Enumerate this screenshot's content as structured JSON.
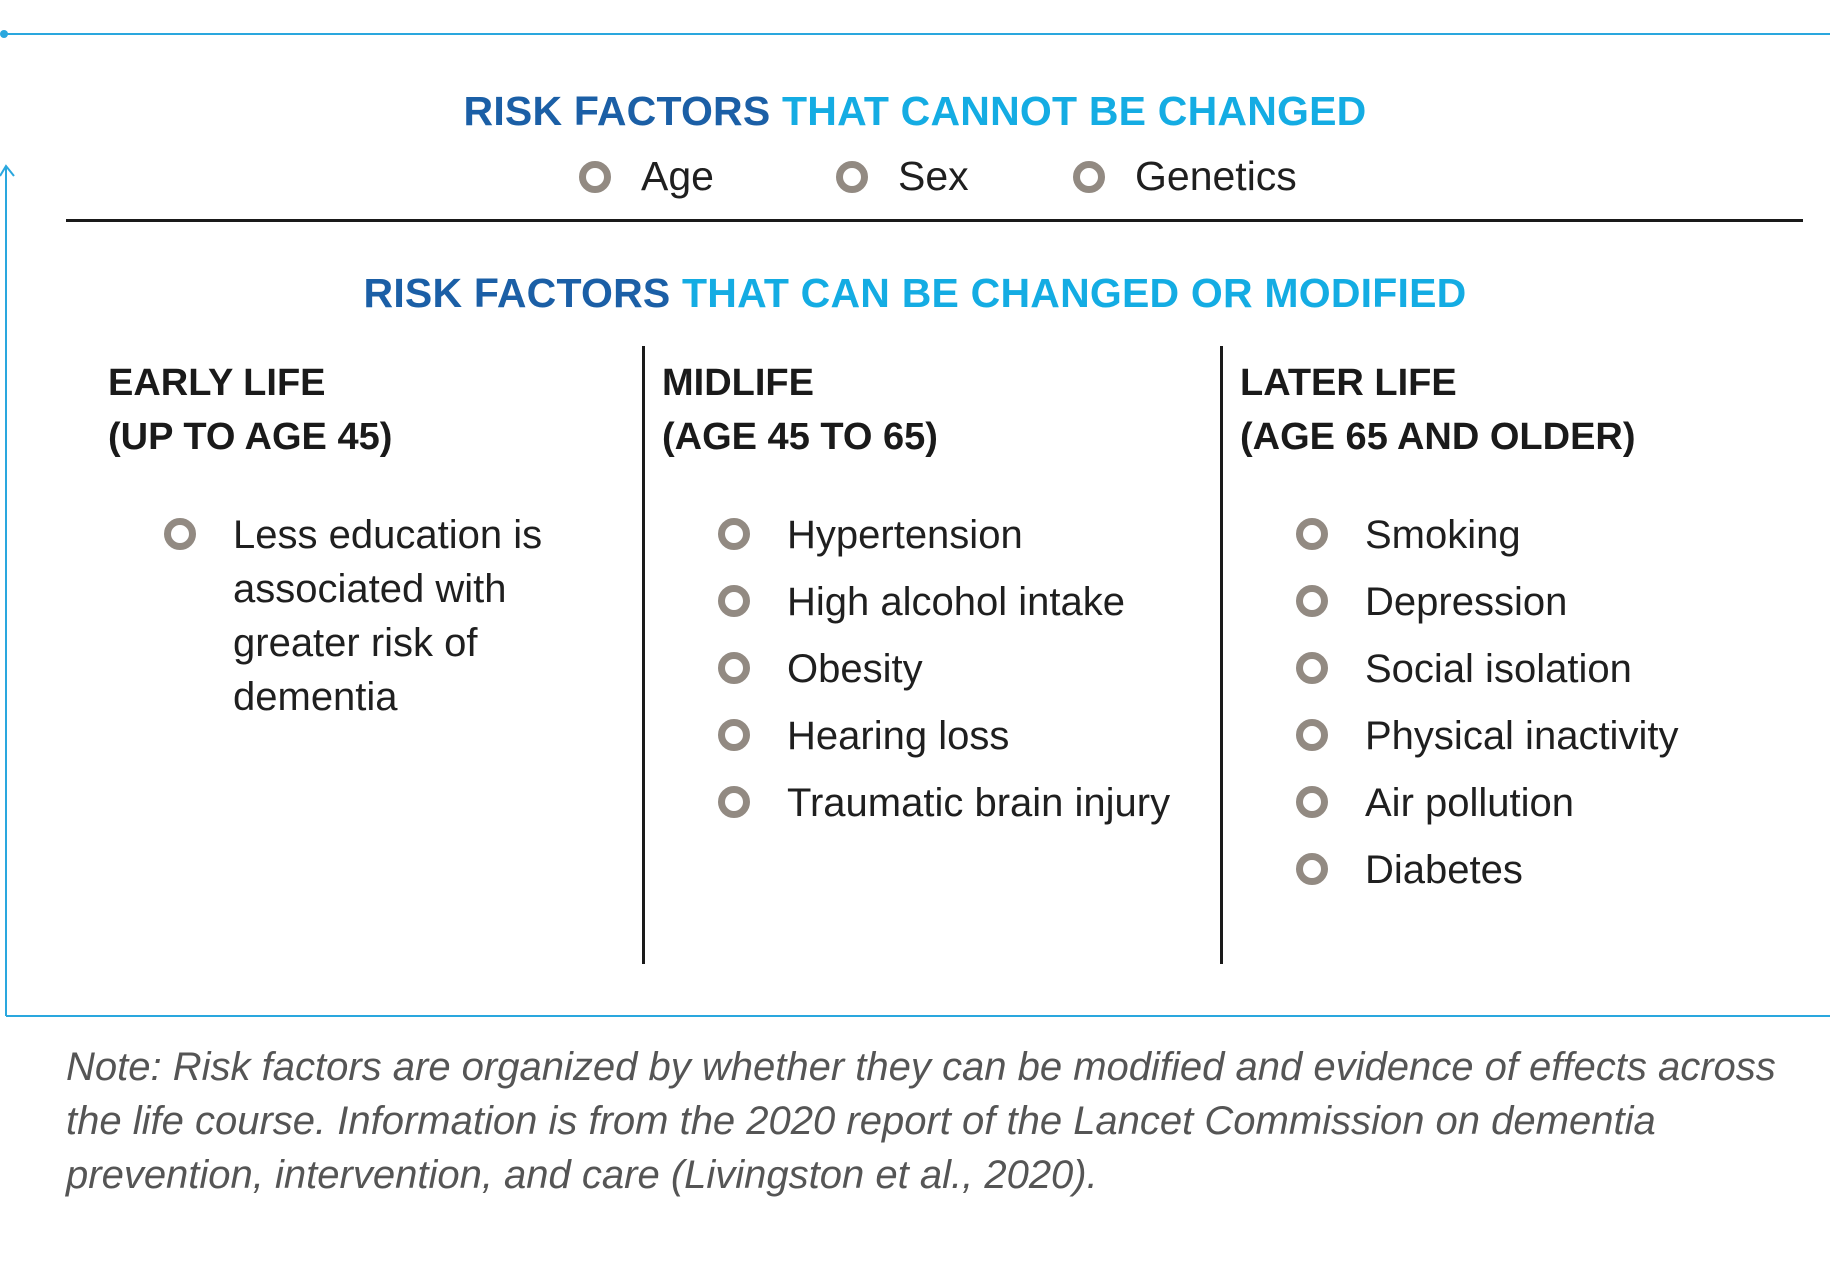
{
  "colors": {
    "frame_line": "#2aa7de",
    "heading_dark": "#1b5fa6",
    "heading_light": "#14ace3",
    "bullet": "#928a82",
    "divider": "#1a1a1a",
    "note_text": "#555555"
  },
  "fixed_section": {
    "heading_part1": "RISK FACTORS",
    "heading_part2": "THAT CANNOT BE CHANGED",
    "items": [
      "Age",
      "Sex",
      "Genetics"
    ]
  },
  "modifiable_section": {
    "heading_part1": "RISK FACTORS",
    "heading_part2": "THAT CAN BE CHANGED OR MODIFIED",
    "columns": [
      {
        "title_line1": "EARLY LIFE",
        "title_line2": "(UP TO AGE 45)",
        "items": [
          "Less education is associated with greater risk of dementia"
        ]
      },
      {
        "title_line1": "MIDLIFE",
        "title_line2": "(AGE 45 TO 65)",
        "items": [
          "Hypertension",
          "High alcohol intake",
          "Obesity",
          "Hearing loss",
          "Traumatic brain injury"
        ]
      },
      {
        "title_line1": "LATER LIFE",
        "title_line2": "(AGE 65 AND OLDER)",
        "items": [
          "Smoking",
          "Depression",
          "Social isolation",
          "Physical inactivity",
          "Air pollution",
          "Diabetes"
        ]
      }
    ]
  },
  "note": "Note: Risk factors are organized by whether they can be modified and evidence of effects across the life course. Information is from the 2020 report of the Lancet Commission on dementia prevention, intervention, and care (Livingston et al., 2020)."
}
